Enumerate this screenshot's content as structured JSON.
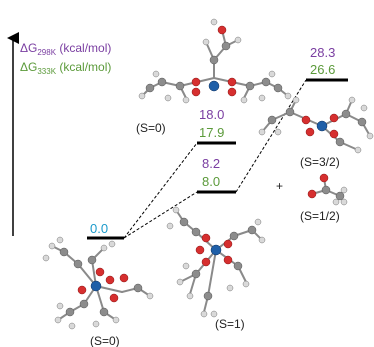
{
  "legend": {
    "line1": {
      "prefix": "ΔG",
      "sub": "298K",
      "suffix": " (kcal/mol)",
      "color": "#7a3ea1"
    },
    "line2": {
      "prefix": "ΔG",
      "sub": "333K",
      "suffix": " (kcal/mol)",
      "color": "#5b9a3a"
    }
  },
  "states": [
    {
      "id": "s0-ground",
      "g298": "0.0",
      "g333": "",
      "spin": "(S=0)",
      "color_single": "#1a9acb"
    },
    {
      "id": "s1",
      "g298": "8.2",
      "g333": "8.0",
      "spin": "(S=1)"
    },
    {
      "id": "s0-upper",
      "g298": "18.0",
      "g333": "17.9",
      "spin": "(S=0)"
    },
    {
      "id": "s32",
      "g298": "28.3",
      "g333": "26.6",
      "spin": "(S=3/2)"
    }
  ],
  "fragment": {
    "plus": "+",
    "spin": "(S=1/2)"
  }
}
